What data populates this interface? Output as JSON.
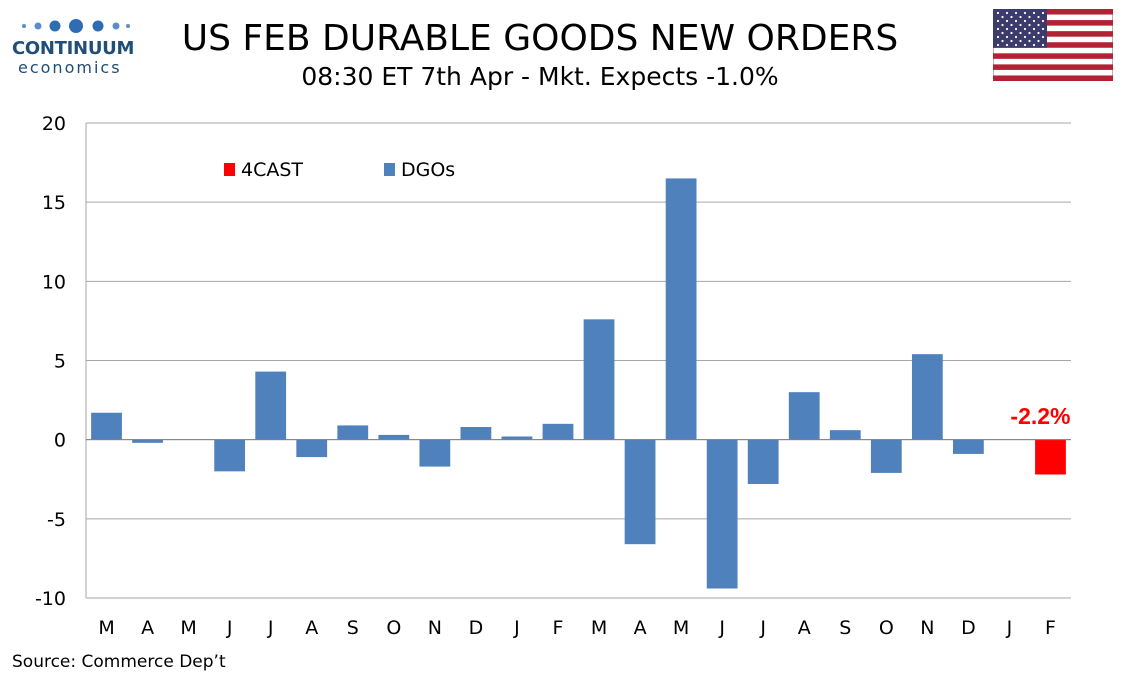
{
  "logo": {
    "name": "CONTINUUM",
    "sub": "economics"
  },
  "header": {
    "title": "US FEB DURABLE GOODS NEW ORDERS",
    "subtitle": "08:30 ET 7th Apr - Mkt. Expects -1.0%"
  },
  "flag": {
    "name": "us-flag"
  },
  "source": "Source: Commerce Dep’t",
  "colors": {
    "dgos": "#4f81bd",
    "forecast": "#ff0000",
    "grid": "#a6a6a6"
  },
  "chart_data": {
    "type": "bar",
    "categories": [
      "M",
      "A",
      "M",
      "J",
      "J",
      "A",
      "S",
      "O",
      "N",
      "D",
      "J",
      "F",
      "M",
      "A",
      "M",
      "J",
      "J",
      "A",
      "S",
      "O",
      "N",
      "D",
      "J",
      "F"
    ],
    "series": [
      {
        "name": "4CAST",
        "color": "#ff0000",
        "values": [
          null,
          null,
          null,
          null,
          null,
          null,
          null,
          null,
          null,
          null,
          null,
          null,
          null,
          null,
          null,
          null,
          null,
          null,
          null,
          null,
          null,
          null,
          null,
          -2.2
        ]
      },
      {
        "name": "DGOs",
        "color": "#4f81bd",
        "values": [
          1.7,
          -0.2,
          0.0,
          -2.0,
          4.3,
          -1.1,
          0.9,
          0.3,
          -1.7,
          0.8,
          0.2,
          1.0,
          7.6,
          -6.6,
          16.5,
          -9.4,
          -2.8,
          3.0,
          0.6,
          -2.1,
          5.4,
          -0.9,
          null,
          null
        ]
      }
    ],
    "ylim": [
      -10,
      20
    ],
    "yticks": [
      20,
      15,
      10,
      5,
      0,
      -5,
      -10
    ],
    "annotation": {
      "text": "-2.2%",
      "index": 23,
      "value": -2.2
    },
    "legend": [
      "4CAST",
      "DGOs"
    ],
    "title": "US FEB DURABLE GOODS NEW ORDERS",
    "xlabel": "",
    "ylabel": ""
  }
}
